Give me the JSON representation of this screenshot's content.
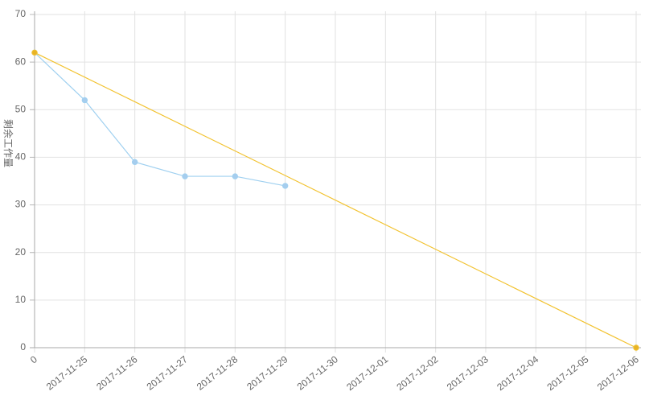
{
  "chart_data": {
    "type": "line",
    "title": "",
    "xlabel": "",
    "ylabel": "剩余工作量",
    "categories": [
      "0",
      "2017-11-25",
      "2017-11-26",
      "2017-11-27",
      "2017-11-28",
      "2017-11-29",
      "2017-11-30",
      "2017-12-01",
      "2017-12-02",
      "2017-12-03",
      "2017-12-04",
      "2017-12-05",
      "2017-12-06"
    ],
    "ylim": [
      0,
      70
    ],
    "yticks": [
      0,
      10,
      20,
      30,
      40,
      50,
      60,
      70
    ],
    "grid": true,
    "legend": "none",
    "series": [
      {
        "color": "#9fd0f0",
        "point_color": "#a6cdee",
        "values": [
          62,
          52,
          39,
          36,
          36,
          34,
          null,
          null,
          null,
          null,
          null,
          null,
          null
        ]
      },
      {
        "color": "#f2c22e",
        "point_color": "#e8b325",
        "values": [
          62,
          null,
          null,
          null,
          null,
          null,
          null,
          null,
          null,
          null,
          null,
          null,
          0
        ]
      }
    ]
  }
}
